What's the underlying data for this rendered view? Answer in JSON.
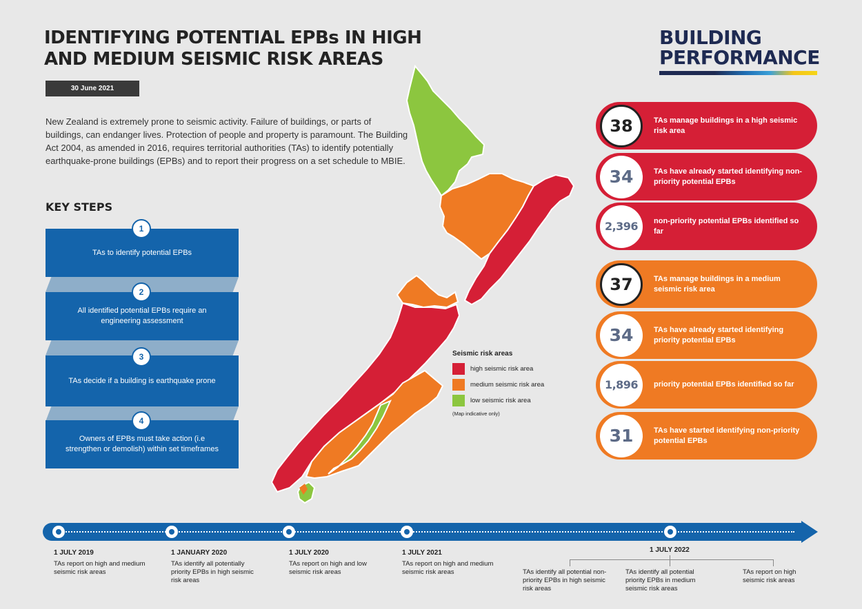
{
  "header": {
    "title": "IDENTIFYING POTENTIAL EPBs IN HIGH AND MEDIUM SEISMIC RISK AREAS",
    "date": "30 June 2021",
    "intro": "New Zealand is extremely prone to seismic activity. Failure of buildings, or parts of buildings, can endanger lives. Protection of people and property is paramount. The Building Act 2004, as amended in 2016, requires territorial authorities (TAs) to identify potentially earthquake-prone buildings (EPBs) and to report their progress on a set schedule to MBIE."
  },
  "brand": {
    "line1": "BUILDING",
    "line2": "PERFORMANCE"
  },
  "key_steps": {
    "title": "KEY STEPS",
    "steps": [
      {
        "num": "1",
        "text": "TAs to identify potential EPBs"
      },
      {
        "num": "2",
        "text": "All identified potential EPBs require an engineering assessment"
      },
      {
        "num": "3",
        "text": "TAs decide if a building is earthquake prone"
      },
      {
        "num": "4",
        "text": "Owners of EPBs must take action (i.e strengthen or demolish) within set timeframes"
      }
    ]
  },
  "legend": {
    "title": "Seismic risk areas",
    "items": [
      {
        "label": "high seismic risk area",
        "color": "#d51f36"
      },
      {
        "label": "medium seismic risk area",
        "color": "#ef7a23"
      },
      {
        "label": "low seismic risk area",
        "color": "#8cc63f"
      }
    ],
    "note": "(Map indicative only)"
  },
  "stats": [
    {
      "value": "38",
      "text": "TAs manage buildings in a high seismic risk area",
      "color": "red"
    },
    {
      "value": "34",
      "text": "TAs have already started identifying non-priority potential EPBs",
      "color": "red"
    },
    {
      "value": "2,396",
      "text": "non-priority potential EPBs identified so far",
      "color": "red"
    },
    {
      "value": "37",
      "text": "TAs manage buildings in a medium seismic risk area",
      "color": "orange"
    },
    {
      "value": "34",
      "text": "TAs have already started identifying priority potential EPBs",
      "color": "orange"
    },
    {
      "value": "1,896",
      "text": "priority potential EPBs identified so far",
      "color": "orange"
    },
    {
      "value": "31",
      "text": "TAs have started identifying non-priority potential EPBs",
      "color": "orange"
    }
  ],
  "timeline": [
    {
      "date": "1 JULY 2019",
      "text": "TAs report on high and medium seismic risk areas"
    },
    {
      "date": "1 JANUARY 2020",
      "text": "TAs identify all potentially priority EPBs in high seismic risk areas"
    },
    {
      "date": "1 JULY 2020",
      "text": "TAs report on high and low seismic risk areas"
    },
    {
      "date": "1 JULY 2021",
      "text": "TAs report on high and medium seismic risk areas"
    },
    {
      "date": "1 JULY 2022",
      "items": [
        "TAs identify all potential non-priority EPBs in high seismic risk areas",
        "TAs identify all potential priority EPBs in medium seismic risk areas",
        "TAs report on high seismic risk areas"
      ]
    }
  ]
}
